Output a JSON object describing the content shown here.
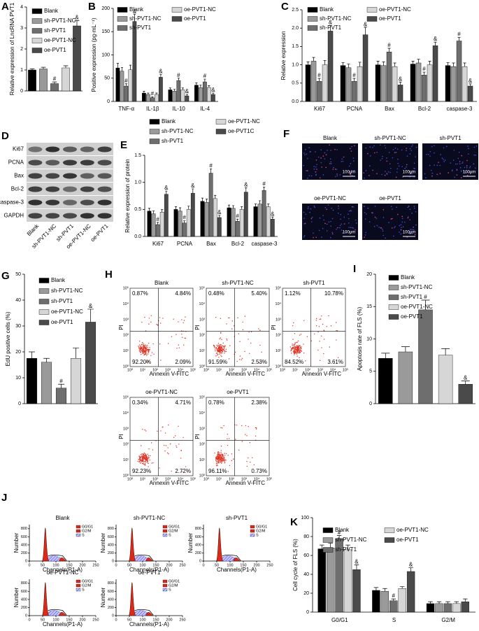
{
  "chart_data": [
    {
      "panel": "A",
      "type": "bar",
      "ylabel": "Relative expression of LncRNA PVT1",
      "categories": [
        "Blank",
        "sh-PVT1-NC",
        "sh-PVT1",
        "oe-PVT1-NC",
        "oe-PVT1"
      ],
      "values": [
        1.0,
        1.05,
        0.35,
        1.1,
        3.1
      ],
      "errors": [
        0.05,
        0.08,
        0.08,
        0.1,
        0.25
      ],
      "marks": [
        null,
        null,
        "#",
        null,
        "&"
      ],
      "colors": [
        "#000000",
        "#9a9a9a",
        "#6e6e6e",
        "#d6d6d6",
        "#4a4a4a"
      ],
      "ylim": [
        0,
        4
      ],
      "yticks": [
        0,
        1,
        2,
        3,
        4
      ]
    },
    {
      "panel": "B",
      "type": "bar",
      "ylabel": "Positive expression (pg·mL⁻¹)",
      "categories": [
        "TNF-α",
        "IL-1β",
        "IL-10",
        "IL-4"
      ],
      "series": [
        {
          "name": "Blank",
          "color": "#000000",
          "values": [
            72,
            18,
            25,
            35
          ],
          "errors": [
            10,
            4,
            4,
            5
          ],
          "marks": [
            null,
            null,
            null,
            null
          ]
        },
        {
          "name": "sh-PVT1-NC",
          "color": "#9a9a9a",
          "values": [
            65,
            15,
            22,
            30
          ],
          "errors": [
            8,
            3,
            4,
            5
          ],
          "marks": [
            null,
            null,
            null,
            null
          ]
        },
        {
          "name": "sh-PVT1",
          "color": "#6e6e6e",
          "values": [
            33,
            8,
            45,
            42
          ],
          "errors": [
            5,
            2,
            5,
            6
          ],
          "marks": [
            "#",
            "#",
            "#",
            "#"
          ]
        },
        {
          "name": "oe-PVT1-NC",
          "color": "#d6d6d6",
          "values": [
            68,
            15,
            25,
            30
          ],
          "errors": [
            10,
            3,
            4,
            4
          ],
          "marks": [
            null,
            null,
            null,
            null
          ]
        },
        {
          "name": "oe-PVT1",
          "color": "#4a4a4a",
          "values": [
            172,
            52,
            12,
            15
          ],
          "errors": [
            15,
            6,
            3,
            3
          ],
          "marks": [
            "&",
            "&",
            "&",
            "&"
          ]
        }
      ],
      "ylim": [
        0,
        200
      ],
      "yticks": [
        0,
        50,
        100,
        150,
        200
      ]
    },
    {
      "panel": "C",
      "type": "bar",
      "ylabel": "Relative expression",
      "categories": [
        "Ki67",
        "PCNA",
        "Bax",
        "Bcl-2",
        "caspase-3"
      ],
      "series": [
        {
          "name": "Blank",
          "color": "#000000",
          "values": [
            1.0,
            0.98,
            1.0,
            1.02,
            0.98
          ],
          "errors": [
            0.08,
            0.08,
            0.1,
            0.08,
            0.08
          ],
          "marks": [
            null,
            null,
            null,
            null,
            null
          ]
        },
        {
          "name": "sh-PVT1-NC",
          "color": "#9a9a9a",
          "values": [
            1.1,
            0.92,
            0.98,
            1.05,
            0.95
          ],
          "errors": [
            0.1,
            0.1,
            0.1,
            0.1,
            0.1
          ],
          "marks": [
            null,
            null,
            null,
            null,
            null
          ]
        },
        {
          "name": "sh-PVT1",
          "color": "#6e6e6e",
          "values": [
            0.55,
            0.55,
            1.35,
            0.72,
            1.65
          ],
          "errors": [
            0.08,
            0.08,
            0.1,
            0.08,
            0.1
          ],
          "marks": [
            "#",
            "#",
            "#",
            "#",
            "#"
          ]
        },
        {
          "name": "oe-PVT1-NC",
          "color": "#d6d6d6",
          "values": [
            1.0,
            0.95,
            0.95,
            1.0,
            0.95
          ],
          "errors": [
            0.12,
            0.12,
            0.1,
            0.1,
            0.1
          ],
          "marks": [
            null,
            null,
            null,
            null,
            null
          ]
        },
        {
          "name": "oe-PVT1",
          "color": "#4a4a4a",
          "values": [
            1.92,
            1.82,
            0.45,
            1.52,
            0.42
          ],
          "errors": [
            0.15,
            0.2,
            0.08,
            0.1,
            0.06
          ],
          "marks": [
            "&",
            "&",
            "&",
            "&",
            "&"
          ]
        }
      ],
      "ylim": [
        0,
        2.5
      ],
      "yticks": [
        {
          "value": 0,
          "label": "0.0"
        },
        0.5,
        {
          "value": 1,
          "label": "1.0"
        },
        1.5,
        {
          "value": 2,
          "label": "2.0"
        },
        2.5
      ]
    },
    {
      "panel": "E",
      "type": "bar",
      "ylabel": "Relative expression of protein",
      "categories": [
        "Ki67",
        "PCNA",
        "Bax",
        "Bcl-2",
        "caspase-3"
      ],
      "series": [
        {
          "name": "Blank",
          "color": "#000000",
          "values": [
            0.47,
            0.5,
            0.65,
            0.53,
            0.55
          ],
          "errors": [
            0.05,
            0.05,
            0.06,
            0.05,
            0.05
          ],
          "marks": [
            null,
            null,
            null,
            null,
            null
          ]
        },
        {
          "name": "sh-PVT1-NC",
          "color": "#9a9a9a",
          "values": [
            0.42,
            0.47,
            0.63,
            0.52,
            0.6
          ],
          "errors": [
            0.05,
            0.06,
            0.06,
            0.05,
            0.06
          ],
          "marks": [
            null,
            null,
            null,
            null,
            null
          ]
        },
        {
          "name": "sh-PVT1",
          "color": "#6e6e6e",
          "values": [
            0.22,
            0.25,
            1.17,
            0.28,
            0.85
          ],
          "errors": [
            0.04,
            0.04,
            0.08,
            0.04,
            0.06
          ],
          "marks": [
            "#",
            "#",
            "#",
            "#",
            "#"
          ]
        },
        {
          "name": "oe-PVT1-NC",
          "color": "#d6d6d6",
          "values": [
            0.45,
            0.5,
            0.7,
            0.5,
            0.55
          ],
          "errors": [
            0.05,
            0.06,
            0.06,
            0.05,
            0.05
          ],
          "marks": [
            null,
            null,
            null,
            null,
            null
          ]
        },
        {
          "name": "oe-PVT1C",
          "color": "#4a4a4a",
          "values": [
            0.78,
            0.8,
            0.35,
            0.82,
            0.32
          ],
          "errors": [
            0.06,
            0.08,
            0.04,
            0.08,
            0.04
          ],
          "marks": [
            "&",
            "&",
            "&",
            "&",
            "&"
          ]
        }
      ],
      "ylim": [
        0,
        1.5
      ],
      "yticks": [
        {
          "value": 0,
          "label": "0.0"
        },
        0.5,
        {
          "value": 1,
          "label": "1.0"
        },
        1.5
      ]
    },
    {
      "panel": "G",
      "type": "bar",
      "ylabel": "EdU positive cells (%)",
      "categories": [
        "Blank",
        "sh-PVT1-NC",
        "sh-PVT1",
        "oe-PVT1-NC",
        "oe-PVT1"
      ],
      "values": [
        17.5,
        16,
        6,
        17.5,
        31.5
      ],
      "errors": [
        2.5,
        1.5,
        1.5,
        4,
        5
      ],
      "marks": [
        null,
        null,
        "#",
        null,
        "&"
      ],
      "colors": [
        "#000000",
        "#9a9a9a",
        "#6e6e6e",
        "#d6d6d6",
        "#4a4a4a"
      ],
      "ylim": [
        0,
        50
      ],
      "yticks": [
        0,
        10,
        20,
        30,
        40,
        50
      ]
    },
    {
      "panel": "I",
      "type": "bar",
      "ylabel": "Apoptosis rate of FLS (%)",
      "categories": [
        "Blank",
        "sh-PVT1-NC",
        "sh-PVT1",
        "oe-PVT1-NC",
        "oe-PVT1"
      ],
      "values": [
        7,
        8,
        14.5,
        7.5,
        3
      ],
      "errors": [
        0.8,
        0.8,
        1.5,
        1,
        0.5
      ],
      "marks": [
        null,
        null,
        "#",
        null,
        "&"
      ],
      "colors": [
        "#000000",
        "#9a9a9a",
        "#6e6e6e",
        "#d6d6d6",
        "#4a4a4a"
      ],
      "ylim": [
        0,
        20
      ],
      "yticks": [
        0,
        5,
        10,
        15,
        20
      ]
    },
    {
      "panel": "K",
      "type": "bar",
      "ylabel": "Cell cycle of FLS (%)",
      "categories": [
        "G0/G1",
        "S",
        "G2/M"
      ],
      "series": [
        {
          "name": "Blank",
          "color": "#000000",
          "values": [
            67,
            23,
            9
          ],
          "errors": [
            4,
            3,
            2
          ],
          "marks": [
            null,
            null,
            null
          ]
        },
        {
          "name": "sh-PVT1-NC",
          "color": "#9a9a9a",
          "values": [
            68,
            22,
            9
          ],
          "errors": [
            5,
            3,
            2
          ],
          "marks": [
            null,
            null,
            null
          ]
        },
        {
          "name": "sh-PVT1",
          "color": "#6e6e6e",
          "values": [
            78,
            12,
            9
          ],
          "errors": [
            3,
            2,
            2
          ],
          "marks": [
            "#",
            "#",
            null
          ]
        },
        {
          "name": "oe-PVT1-NC",
          "color": "#d6d6d6",
          "values": [
            66,
            25,
            9
          ],
          "errors": [
            5,
            2,
            2
          ],
          "marks": [
            null,
            null,
            null
          ]
        },
        {
          "name": "oe-PVT1",
          "color": "#4a4a4a",
          "values": [
            45,
            43,
            11
          ],
          "errors": [
            5,
            4,
            3
          ],
          "marks": [
            "&",
            "&",
            null
          ]
        }
      ],
      "ylim": [
        0,
        100
      ],
      "yticks": [
        0,
        20,
        40,
        60,
        80,
        100
      ]
    }
  ],
  "blot": {
    "panel": "D",
    "proteins": [
      "Ki67",
      "PCNA",
      "Bax",
      "Bcl-2",
      "caspase-3",
      "GAPDH"
    ],
    "lanes": [
      "Blank",
      "sh-PVT1-NC",
      "sh-PVT1",
      "oe-PVT1-NC",
      "oe-PVT1"
    ]
  },
  "images": {
    "panel": "F",
    "labels": [
      "Blank",
      "sh-PVT1-NC",
      "sh-PVT1",
      "oe-PVT1-NC",
      "oe-PVT1"
    ],
    "scale_bar": "100μm"
  },
  "flow": {
    "panel": "H",
    "x_label": "Annexin V-FITC",
    "y_label": "PI",
    "ticks": [
      "10⁰",
      "10¹",
      "10²",
      "10³",
      "10⁴",
      "10⁵"
    ],
    "plots": [
      {
        "name": "Blank",
        "quadrants": [
          "0.87%",
          "4.84%",
          "92.20%",
          "2.09%"
        ]
      },
      {
        "name": "sh-PVT1-NC",
        "quadrants": [
          "0.48%",
          "5.40%",
          "91.59%",
          "2.53%"
        ]
      },
      {
        "name": "sh-PVT1",
        "quadrants": [
          "1.12%",
          "10.78%",
          "84.52%",
          "3.61%"
        ]
      },
      {
        "name": "oe-PVT1-NC",
        "quadrants": [
          "0.34%",
          "4.71%",
          "92.23%",
          "2.72%"
        ]
      },
      {
        "name": "oe-PVT1",
        "quadrants": [
          "0.78%",
          "2.38%",
          "96.11%",
          "0.73%"
        ]
      }
    ]
  },
  "cell_cycle": {
    "panel": "J",
    "x_label": "Channels(P1-A)",
    "y_label": "Number",
    "legend": [
      "G0/G1",
      "G2/M",
      "S"
    ],
    "xlim": [
      0,
      250
    ],
    "xticks": [
      0,
      50,
      100,
      150,
      200,
      250
    ],
    "ylim": [
      0,
      900
    ],
    "yticks": [
      0,
      200,
      400,
      600,
      800
    ],
    "plots": [
      "Blank",
      "sh-PVT1-NC",
      "sh-PVT1",
      "oe-PVT1-NC",
      "oe-PVT1"
    ]
  }
}
